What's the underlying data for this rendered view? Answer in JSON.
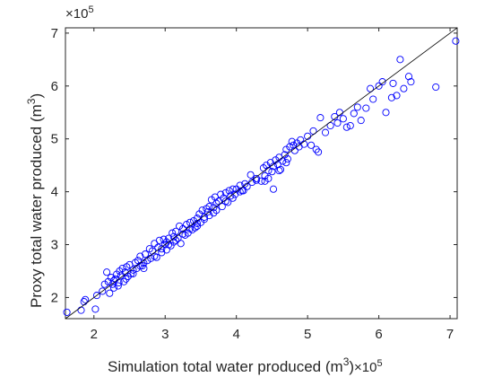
{
  "chart_data": {
    "type": "scatter",
    "title": "",
    "xlabel": "Simulation total water produced (m",
    "xlabel_sup": "3",
    "xlabel_suffix": ")",
    "x_exponent_base": "×10",
    "x_exponent_power": "5",
    "ylabel": "Proxy total water produced (m",
    "ylabel_sup": "3",
    "ylabel_suffix": ")",
    "y_exponent_base": "×10",
    "y_exponent_power": "5",
    "xlim": [
      1.6,
      7.1
    ],
    "ylim": [
      1.6,
      7.1
    ],
    "x_ticks": [
      2,
      3,
      4,
      5,
      6,
      7
    ],
    "y_ticks": [
      2,
      3,
      4,
      5,
      6,
      7
    ],
    "grid": false,
    "marker_color": "#0000ff",
    "line_color": "#000000",
    "reference_line": {
      "x": [
        1.6,
        7.1
      ],
      "y": [
        1.6,
        7.1
      ]
    },
    "points": [
      [
        1.62,
        1.72
      ],
      [
        1.82,
        1.76
      ],
      [
        1.86,
        1.92
      ],
      [
        1.88,
        1.96
      ],
      [
        2.02,
        1.78
      ],
      [
        2.04,
        2.04
      ],
      [
        2.12,
        2.12
      ],
      [
        2.15,
        2.25
      ],
      [
        2.18,
        2.48
      ],
      [
        2.2,
        2.3
      ],
      [
        2.22,
        2.08
      ],
      [
        2.24,
        2.38
      ],
      [
        2.26,
        2.25
      ],
      [
        2.28,
        2.32
      ],
      [
        2.3,
        2.35
      ],
      [
        2.32,
        2.44
      ],
      [
        2.34,
        2.22
      ],
      [
        2.36,
        2.5
      ],
      [
        2.38,
        2.42
      ],
      [
        2.4,
        2.55
      ],
      [
        2.42,
        2.3
      ],
      [
        2.44,
        2.48
      ],
      [
        2.46,
        2.58
      ],
      [
        2.48,
        2.4
      ],
      [
        2.5,
        2.62
      ],
      [
        2.52,
        2.45
      ],
      [
        2.55,
        2.52
      ],
      [
        2.58,
        2.66
      ],
      [
        2.6,
        2.55
      ],
      [
        2.62,
        2.7
      ],
      [
        2.65,
        2.78
      ],
      [
        2.68,
        2.6
      ],
      [
        2.7,
        2.65
      ],
      [
        2.72,
        2.82
      ],
      [
        2.75,
        2.7
      ],
      [
        2.78,
        2.92
      ],
      [
        2.8,
        2.74
      ],
      [
        2.82,
        2.88
      ],
      [
        2.85,
        3.02
      ],
      [
        2.88,
        2.76
      ],
      [
        2.9,
        2.95
      ],
      [
        2.92,
        3.08
      ],
      [
        2.95,
        2.85
      ],
      [
        2.98,
        3.1
      ],
      [
        3.0,
        3.0
      ],
      [
        3.02,
        2.9
      ],
      [
        3.05,
        3.12
      ],
      [
        3.08,
        2.98
      ],
      [
        3.1,
        3.22
      ],
      [
        3.12,
        3.05
      ],
      [
        3.15,
        3.25
      ],
      [
        3.18,
        3.12
      ],
      [
        3.2,
        3.35
      ],
      [
        3.22,
        3.02
      ],
      [
        3.25,
        3.3
      ],
      [
        3.28,
        3.18
      ],
      [
        3.3,
        3.38
      ],
      [
        3.32,
        3.22
      ],
      [
        3.35,
        3.42
      ],
      [
        3.38,
        3.28
      ],
      [
        3.4,
        3.45
      ],
      [
        3.42,
        3.32
      ],
      [
        3.45,
        3.5
      ],
      [
        3.48,
        3.58
      ],
      [
        3.5,
        3.42
      ],
      [
        3.52,
        3.65
      ],
      [
        3.55,
        3.52
      ],
      [
        3.58,
        3.68
      ],
      [
        3.6,
        3.62
      ],
      [
        3.62,
        3.72
      ],
      [
        3.65,
        3.85
      ],
      [
        3.68,
        3.7
      ],
      [
        3.7,
        3.9
      ],
      [
        3.72,
        3.78
      ],
      [
        3.75,
        3.82
      ],
      [
        3.78,
        3.95
      ],
      [
        3.8,
        3.72
      ],
      [
        3.82,
        3.88
      ],
      [
        3.85,
        3.98
      ],
      [
        3.88,
        3.8
      ],
      [
        3.9,
        4.02
      ],
      [
        3.92,
        3.92
      ],
      [
        3.95,
        4.05
      ],
      [
        3.98,
        3.95
      ],
      [
        4.0,
        4.05
      ],
      [
        4.05,
        4.12
      ],
      [
        4.08,
        4.02
      ],
      [
        4.12,
        4.15
      ],
      [
        4.15,
        4.1
      ],
      [
        4.2,
        4.32
      ],
      [
        4.22,
        4.18
      ],
      [
        4.28,
        4.25
      ],
      [
        4.35,
        4.2
      ],
      [
        4.38,
        4.45
      ],
      [
        4.4,
        4.3
      ],
      [
        4.42,
        4.5
      ],
      [
        4.45,
        4.4
      ],
      [
        4.48,
        4.55
      ],
      [
        4.5,
        4.38
      ],
      [
        4.52,
        4.48
      ],
      [
        4.55,
        4.6
      ],
      [
        4.58,
        4.52
      ],
      [
        4.6,
        4.65
      ],
      [
        4.62,
        4.42
      ],
      [
        4.65,
        4.58
      ],
      [
        4.68,
        4.7
      ],
      [
        4.7,
        4.8
      ],
      [
        4.72,
        4.62
      ],
      [
        4.75,
        4.85
      ],
      [
        4.78,
        4.95
      ],
      [
        4.8,
        4.88
      ],
      [
        4.82,
        4.78
      ],
      [
        4.85,
        4.92
      ],
      [
        4.88,
        4.85
      ],
      [
        4.9,
        4.98
      ],
      [
        4.95,
        4.9
      ],
      [
        5.0,
        5.05
      ],
      [
        5.05,
        4.88
      ],
      [
        5.08,
        5.15
      ],
      [
        5.12,
        4.8
      ],
      [
        5.15,
        4.75
      ],
      [
        5.18,
        5.4
      ],
      [
        5.25,
        5.12
      ],
      [
        5.32,
        5.25
      ],
      [
        5.38,
        5.42
      ],
      [
        5.42,
        5.3
      ],
      [
        5.45,
        5.5
      ],
      [
        5.5,
        5.38
      ],
      [
        5.55,
        5.22
      ],
      [
        5.6,
        5.25
      ],
      [
        5.65,
        5.48
      ],
      [
        5.7,
        5.6
      ],
      [
        5.75,
        5.35
      ],
      [
        5.82,
        5.58
      ],
      [
        5.88,
        5.95
      ],
      [
        5.92,
        5.75
      ],
      [
        6.0,
        6.0
      ],
      [
        6.05,
        6.08
      ],
      [
        6.1,
        5.5
      ],
      [
        6.18,
        5.78
      ],
      [
        6.2,
        6.05
      ],
      [
        6.25,
        5.82
      ],
      [
        6.3,
        6.5
      ],
      [
        6.35,
        5.95
      ],
      [
        6.42,
        6.18
      ],
      [
        6.45,
        6.08
      ],
      [
        6.8,
        5.98
      ],
      [
        7.08,
        6.85
      ],
      [
        2.65,
        2.6
      ],
      [
        2.7,
        2.55
      ],
      [
        2.85,
        2.78
      ],
      [
        2.95,
        2.92
      ],
      [
        3.05,
        3.0
      ],
      [
        3.15,
        3.08
      ],
      [
        3.35,
        3.3
      ],
      [
        3.45,
        3.4
      ],
      [
        3.55,
        3.48
      ],
      [
        3.72,
        3.65
      ],
      [
        3.85,
        3.82
      ],
      [
        3.95,
        3.88
      ],
      [
        4.05,
        4.0
      ],
      [
        4.45,
        4.25
      ],
      [
        4.52,
        4.05
      ],
      [
        4.6,
        4.4
      ],
      [
        4.7,
        4.55
      ],
      [
        4.4,
        4.2
      ],
      [
        2.35,
        2.28
      ],
      [
        2.45,
        2.35
      ],
      [
        2.55,
        2.45
      ],
      [
        3.12,
        3.15
      ],
      [
        3.25,
        3.2
      ],
      [
        3.45,
        3.35
      ],
      [
        3.62,
        3.55
      ],
      [
        4.28,
        4.22
      ],
      [
        2.28,
        2.18
      ],
      [
        3.02,
        3.05
      ],
      [
        3.68,
        3.6
      ],
      [
        4.1,
        4.02
      ]
    ]
  }
}
